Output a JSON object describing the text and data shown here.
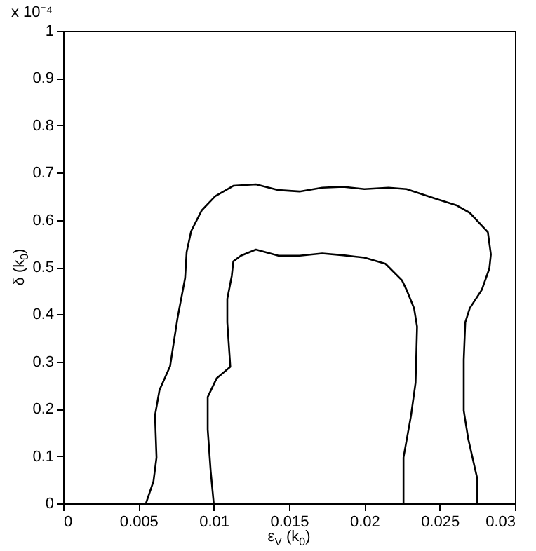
{
  "chart_data": {
    "type": "line",
    "xlabel": "ε$_{V}$ (k$_{0}$)",
    "ylabel": "δ (k$_{0}$)",
    "annotations": [
      "x 10⁻⁴"
    ],
    "xlim": [
      0,
      0.03
    ],
    "xticks": [
      0,
      0.005,
      0.01,
      0.015,
      0.02,
      0.025,
      0.03
    ],
    "ylim": [
      0,
      1
    ],
    "yticks": [
      0,
      0.1,
      0.2,
      0.3,
      0.4,
      0.5,
      0.6,
      0.7,
      0.8,
      0.9,
      1
    ],
    "grid": false,
    "legend": false,
    "marker": "none",
    "line_style": "solid",
    "series": [
      {
        "color": "#000000",
        "x": [
          0.0055,
          0.006,
          0.0062,
          0.0061,
          0.0064,
          0.0071,
          0.0076,
          0.0081,
          0.0082,
          0.0085,
          0.0092,
          0.0101,
          0.0113,
          0.0128,
          0.0143,
          0.0157,
          0.0172,
          0.0186,
          0.02,
          0.0216,
          0.0228,
          0.0247,
          0.0261,
          0.027,
          0.0282,
          0.0284,
          0.0283,
          0.0278,
          0.027,
          0.0267,
          0.0266,
          0.0266,
          0.0269,
          0.0275,
          0.0275
        ],
        "values": [
          0,
          0.047,
          0.097,
          0.186,
          0.24,
          0.29,
          0.393,
          0.477,
          0.532,
          0.576,
          0.62,
          0.65,
          0.672,
          0.675,
          0.663,
          0.66,
          0.668,
          0.67,
          0.665,
          0.668,
          0.665,
          0.645,
          0.631,
          0.615,
          0.574,
          0.527,
          0.497,
          0.452,
          0.413,
          0.383,
          0.304,
          0.196,
          0.136,
          0.052,
          0
        ]
      },
      {
        "color": "#000000",
        "x": [
          0.01,
          0.0098,
          0.0096,
          0.0096,
          0.0102,
          0.0111,
          0.0109,
          0.0109,
          0.0112,
          0.0113,
          0.0118,
          0.0128,
          0.0143,
          0.0157,
          0.0172,
          0.0186,
          0.02,
          0.0214,
          0.0225,
          0.0228,
          0.0233,
          0.0235,
          0.0234,
          0.0231,
          0.0226,
          0.0226
        ],
        "values": [
          0,
          0.067,
          0.156,
          0.225,
          0.265,
          0.289,
          0.383,
          0.433,
          0.482,
          0.512,
          0.524,
          0.537,
          0.524,
          0.524,
          0.529,
          0.525,
          0.52,
          0.507,
          0.472,
          0.452,
          0.413,
          0.374,
          0.255,
          0.186,
          0.097,
          0
        ]
      }
    ]
  }
}
